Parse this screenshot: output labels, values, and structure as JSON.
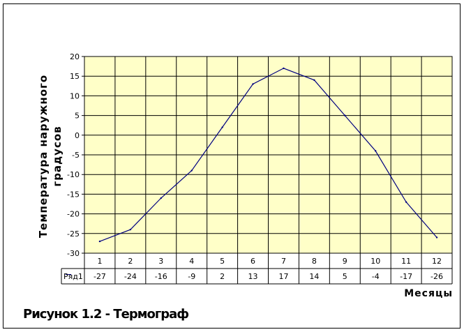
{
  "caption": "Рисунок 1.2 - Термограф",
  "chart_data": {
    "type": "line",
    "title": "",
    "ylabel_lines": [
      "Температура наружного",
      "градусов"
    ],
    "xlabel": "Месяцы",
    "categories": [
      "1",
      "2",
      "3",
      "4",
      "5",
      "6",
      "7",
      "8",
      "9",
      "10",
      "11",
      "12"
    ],
    "series": [
      {
        "name": "Ряд1",
        "values": [
          -27,
          -24,
          -16,
          -9,
          2,
          13,
          17,
          14,
          5,
          -4,
          -17,
          -26
        ]
      }
    ],
    "y_ticks": [
      20,
      15,
      10,
      5,
      0,
      -5,
      -10,
      -15,
      -20,
      -25,
      -30
    ],
    "ylim": [
      -30,
      20
    ],
    "grid": true,
    "data_table": true,
    "plot_background": "#ffffc8",
    "line_color": "#000080"
  }
}
